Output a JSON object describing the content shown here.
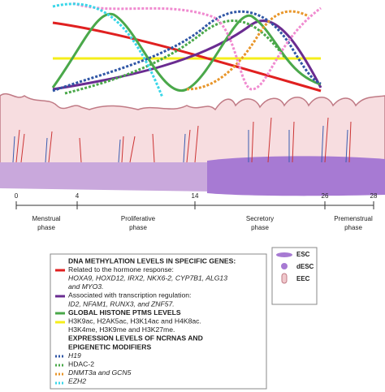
{
  "timeline": {
    "ticks": [
      "0",
      "4",
      "14",
      "26",
      "28"
    ],
    "phases": [
      [
        "Menstrual",
        "phase"
      ],
      [
        "Proliferative",
        "phase"
      ],
      [
        "Secretory",
        "phase"
      ],
      [
        "Premenstrual",
        "phase"
      ]
    ]
  },
  "cell_legend": [
    "ESC",
    "dESC",
    "EEC"
  ],
  "legend": [
    "DNA METHYLATION LEVELS IN SPECIFIC GENES:",
    "Related to the hormone response:",
    "HOXA9, HOXD12, IRX2, NKX6-2, CYP7B1, ALG13",
    "and MYO3.",
    "Associated with transcription regulation:",
    "ID2, NFAM1, RUNX3, and ZNF57.",
    "GLOBAL HISTONE PTMS LEVELS",
    "H3K9ac, H2AK5ac, H3K14ac and H4K8ac.",
    "H3K4me, H3K9me and H3K27me.",
    "EXPRESSION LEVELS OF NCRNAS AND",
    "EPIGENETIC MODIFIERS",
    "H19",
    "HDAC-2",
    "DNMT3a and GCN5",
    "EZH2"
  ]
}
